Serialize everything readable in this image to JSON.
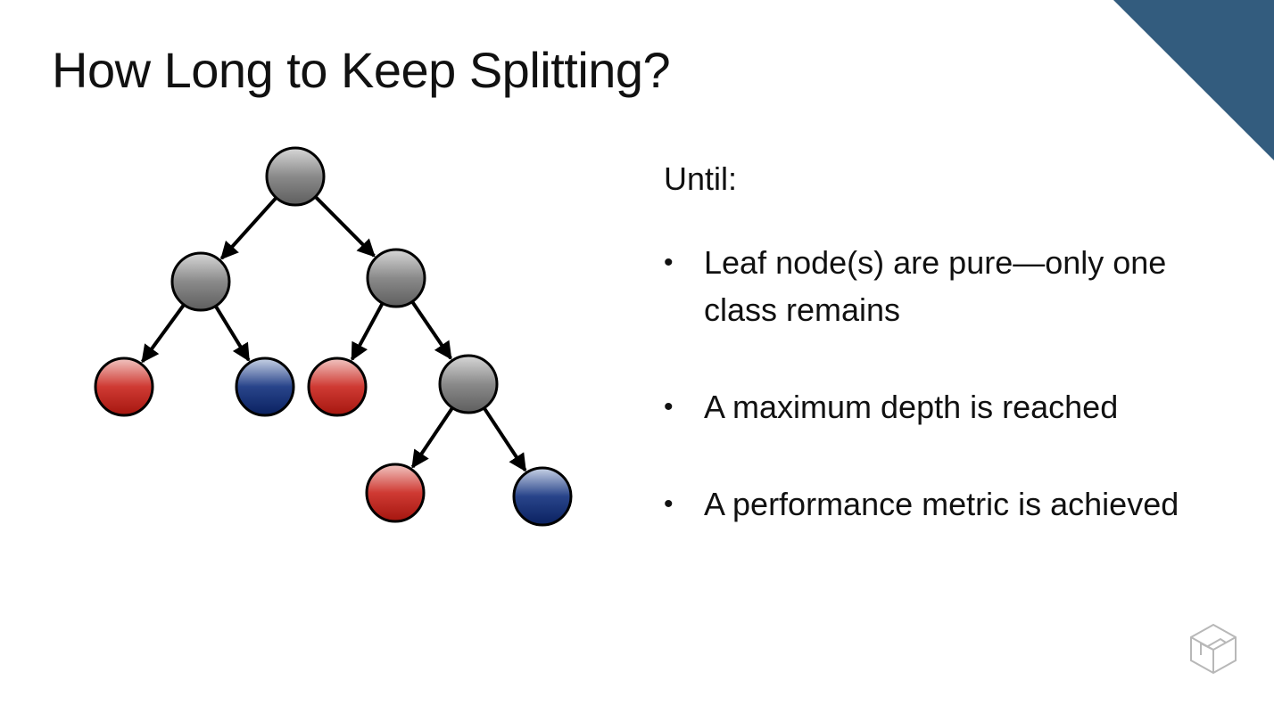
{
  "slide": {
    "title": "How Long to Keep Splitting?",
    "intro": "Until:",
    "bullets": [
      {
        "text": "Leaf node(s) are pure—only one class remains"
      },
      {
        "text": "A maximum depth is reached"
      },
      {
        "text": "A performance metric is achieved"
      }
    ]
  },
  "tree": {
    "nodes": [
      {
        "id": "root",
        "color": "gray"
      },
      {
        "id": "left-internal",
        "color": "gray"
      },
      {
        "id": "right-internal",
        "color": "gray"
      },
      {
        "id": "leaf-1",
        "color": "red"
      },
      {
        "id": "leaf-2",
        "color": "blue"
      },
      {
        "id": "leaf-3",
        "color": "red"
      },
      {
        "id": "deep-internal",
        "color": "gray"
      },
      {
        "id": "leaf-4",
        "color": "red"
      },
      {
        "id": "leaf-5",
        "color": "blue"
      }
    ],
    "edges": [
      [
        "root",
        "left-internal"
      ],
      [
        "root",
        "right-internal"
      ],
      [
        "left-internal",
        "leaf-1"
      ],
      [
        "left-internal",
        "leaf-2"
      ],
      [
        "right-internal",
        "leaf-3"
      ],
      [
        "right-internal",
        "deep-internal"
      ],
      [
        "deep-internal",
        "leaf-4"
      ],
      [
        "deep-internal",
        "leaf-5"
      ]
    ]
  },
  "colors": {
    "corner": "#335c7e",
    "gray": "#6b6b6b",
    "red": "#b3201c",
    "blue": "#0f2a6b"
  },
  "icons": {
    "corner": "corner-triangle-icon",
    "logo": "cube-logo-icon"
  }
}
